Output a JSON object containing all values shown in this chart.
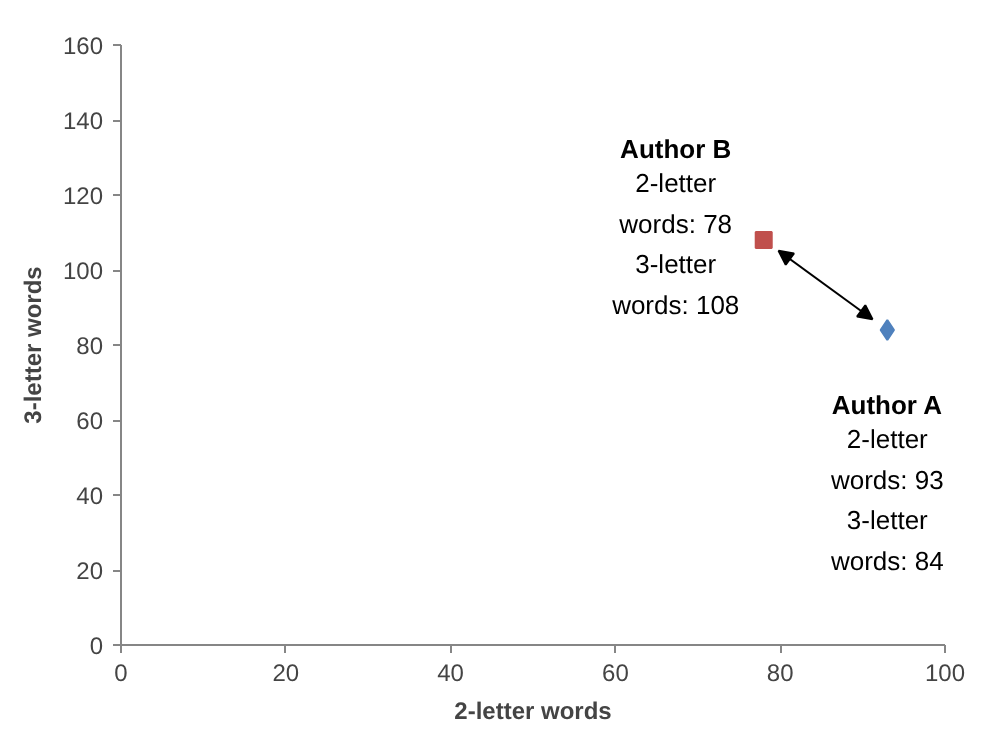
{
  "chart_data": {
    "type": "scatter",
    "xlabel": "2-letter words",
    "ylabel": "3-letter words",
    "xlim": [
      0,
      100
    ],
    "xticks": [
      0,
      20,
      40,
      60,
      80,
      100
    ],
    "ylim": [
      0,
      160
    ],
    "yticks": [
      0,
      20,
      40,
      60,
      80,
      100,
      120,
      140,
      160
    ],
    "grid": false,
    "legend": false,
    "series": [
      {
        "name": "Author A",
        "color": "#4f81bd",
        "marker": "diamond",
        "x": [
          93
        ],
        "values": [
          84
        ]
      },
      {
        "name": "Author B",
        "color": "#c0504d",
        "marker": "square",
        "x": [
          78
        ],
        "values": [
          108
        ]
      }
    ],
    "annotations": [
      "2-letter\nwords: 93\n3-letter\nwords: 84",
      "2-letter\nwords: 78\n3-letter\nwords: 108"
    ]
  }
}
